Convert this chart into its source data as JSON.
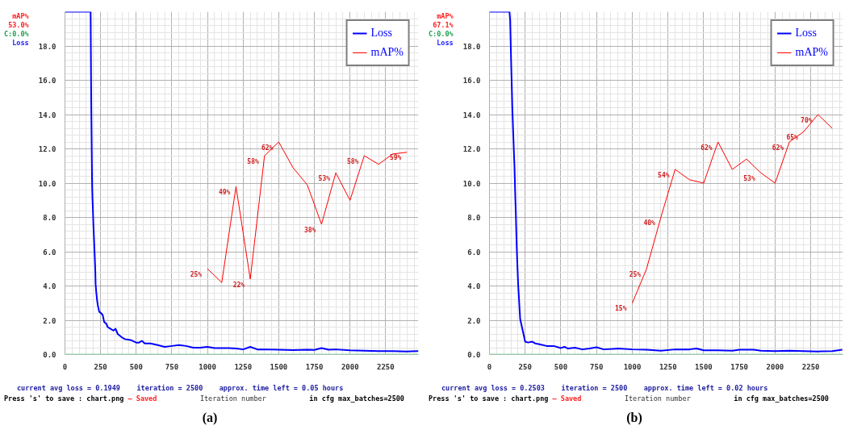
{
  "chart_data": [
    {
      "type": "line",
      "xlabel": "Iteration number",
      "xlim": [
        0,
        2480
      ],
      "xticks": [
        0,
        250,
        500,
        750,
        1000,
        1250,
        1500,
        1750,
        2000,
        2250
      ],
      "ylim": [
        0,
        20
      ],
      "yticks": [
        {
          "value": 0,
          "label": "0.0"
        },
        {
          "value": 2,
          "label": "2.0"
        },
        {
          "value": 4,
          "label": "4.0"
        },
        {
          "value": 6,
          "label": "6.0"
        },
        {
          "value": 8,
          "label": "8.0"
        },
        {
          "value": 10,
          "label": "10.0"
        },
        {
          "value": 12,
          "label": "12.0"
        },
        {
          "value": 14,
          "label": "14.0"
        },
        {
          "value": 16,
          "label": "16.0"
        },
        {
          "value": 18,
          "label": "18.0"
        }
      ],
      "y2lim": [
        0,
        100
      ],
      "grid": true,
      "legend": "top right",
      "ref_lines": [
        {
          "axis": "y",
          "value": 0,
          "color": "#90d8a8"
        }
      ],
      "annotations": [
        "mAP%",
        "53.0%",
        "C:0.0%",
        "Loss",
        "current avg loss = 0.1949    iteration = 2500    approx. time left = 0.05 hours",
        "Press 's' to save : chart.png",
        "– Saved",
        "in cfg max_batches=2500",
        "(a)"
      ],
      "series": [
        {
          "name": "Loss",
          "color": "#0000ff",
          "x": [
            0,
            180,
            181,
            182,
            183,
            184,
            185,
            186,
            187,
            188,
            189,
            190,
            191,
            193,
            195,
            197,
            199,
            201,
            203,
            205,
            207,
            209,
            211,
            213,
            215,
            220,
            225,
            230,
            240,
            255,
            265,
            275,
            290,
            300,
            320,
            340,
            355,
            370,
            400,
            420,
            460,
            500,
            520,
            540,
            560,
            600,
            650,
            700,
            750,
            800,
            850,
            900,
            950,
            1000,
            1050,
            1100,
            1150,
            1200,
            1250,
            1300,
            1350,
            1400,
            1500,
            1600,
            1700,
            1750,
            1800,
            1850,
            1900,
            2000,
            2100,
            2200,
            2300,
            2400,
            2480
          ],
          "values": [
            20,
            20,
            18.7,
            17.4,
            16.2,
            15.1,
            14.1,
            13.3,
            12.5,
            11.7,
            10.9,
            10.2,
            9.7,
            9.1,
            8.7,
            8.2,
            7.7,
            7.3,
            6.9,
            6.5,
            6.1,
            5.7,
            5.3,
            4.8,
            4.1,
            3.6,
            3.2,
            2.9,
            2.5,
            2.4,
            2.3,
            1.9,
            1.8,
            1.6,
            1.5,
            1.4,
            1.5,
            1.2,
            1.0,
            0.9,
            0.85,
            0.7,
            0.7,
            0.8,
            0.65,
            0.65,
            0.55,
            0.45,
            0.5,
            0.55,
            0.5,
            0.4,
            0.4,
            0.45,
            0.38,
            0.38,
            0.38,
            0.35,
            0.3,
            0.45,
            0.3,
            0.3,
            0.28,
            0.26,
            0.28,
            0.27,
            0.38,
            0.28,
            0.3,
            0.25,
            0.22,
            0.2,
            0.2,
            0.18,
            0.2
          ]
        },
        {
          "name": "mAP%",
          "color": "#ff0000",
          "axis": "y2",
          "x": [
            1000,
            1100,
            1200,
            1300,
            1400,
            1500,
            1600,
            1700,
            1800,
            1900,
            2000,
            2100,
            2200,
            2300,
            2400
          ],
          "values": [
            25,
            21,
            49,
            22,
            58,
            62,
            54.5,
            49.5,
            38,
            53,
            45,
            58,
            55.5,
            58.5,
            59
          ],
          "value_labels": [
            "25%",
            null,
            "49%",
            "22%",
            "58%",
            "62%",
            null,
            null,
            "38%",
            "53%",
            null,
            "58%",
            null,
            null,
            "59%"
          ]
        }
      ]
    },
    {
      "type": "line",
      "xlabel": "Iteration number",
      "xlim": [
        0,
        2475
      ],
      "xticks": [
        0,
        250,
        500,
        750,
        1000,
        1250,
        1500,
        1750,
        2000,
        2250
      ],
      "ylim": [
        0,
        20
      ],
      "yticks": [
        {
          "value": 0,
          "label": "0.0"
        },
        {
          "value": 2,
          "label": "2.0"
        },
        {
          "value": 4,
          "label": "4.0"
        },
        {
          "value": 6,
          "label": "6.0"
        },
        {
          "value": 8,
          "label": "8.0"
        },
        {
          "value": 10,
          "label": "10.0"
        },
        {
          "value": 12,
          "label": "12.0"
        },
        {
          "value": 14,
          "label": "14.0"
        },
        {
          "value": 16,
          "label": "16.0"
        },
        {
          "value": 18,
          "label": "18.0"
        }
      ],
      "y2lim": [
        0,
        100
      ],
      "grid": true,
      "legend": "top right",
      "ref_lines": [
        {
          "axis": "y",
          "value": 0,
          "color": "#90d8a8"
        }
      ],
      "annotations": [
        "mAP%",
        "67.1%",
        "C:0.0%",
        "Loss",
        "current avg loss = 0.2503    iteration = 2500    approx. time left = 0.02 hours",
        "Press 's' to save : chart.png",
        "– Saved",
        "in cfg max_batches=2500",
        "(b)"
      ],
      "series": [
        {
          "name": "Loss",
          "color": "#0000ff",
          "x": [
            0,
            140,
            145,
            148,
            151,
            154,
            157,
            160,
            163,
            166,
            169,
            172,
            175,
            177,
            179,
            181,
            183,
            185,
            187,
            189,
            191,
            193,
            195,
            197,
            199,
            201,
            203,
            205,
            208,
            212,
            215,
            250,
            270,
            300,
            320,
            350,
            400,
            450,
            500,
            525,
            550,
            600,
            650,
            700,
            750,
            800,
            900,
            1000,
            1100,
            1200,
            1300,
            1400,
            1450,
            1500,
            1600,
            1700,
            1750,
            1850,
            1900,
            2000,
            2100,
            2200,
            2300,
            2400,
            2470
          ],
          "values": [
            20,
            20,
            19.5,
            18.4,
            17.3,
            16.35,
            15.4,
            14.4,
            13.7,
            12.97,
            12.3,
            11.6,
            11.0,
            10.4,
            9.75,
            9.16,
            8.65,
            8.1,
            7.45,
            6.85,
            6.27,
            5.77,
            5.33,
            4.9,
            4.49,
            4.06,
            3.78,
            3.5,
            3.06,
            2.5,
            2.07,
            0.75,
            0.7,
            0.75,
            0.65,
            0.6,
            0.5,
            0.5,
            0.38,
            0.45,
            0.35,
            0.4,
            0.3,
            0.35,
            0.42,
            0.3,
            0.35,
            0.3,
            0.28,
            0.22,
            0.3,
            0.3,
            0.35,
            0.25,
            0.25,
            0.22,
            0.28,
            0.28,
            0.22,
            0.2,
            0.22,
            0.2,
            0.18,
            0.2,
            0.28
          ]
        },
        {
          "name": "mAP%",
          "color": "#ff0000",
          "axis": "y2",
          "x": [
            1000,
            1100,
            1200,
            1300,
            1400,
            1500,
            1600,
            1700,
            1800,
            1900,
            2000,
            2100,
            2200,
            2300,
            2400
          ],
          "values": [
            15,
            25,
            40,
            54,
            51,
            50,
            62,
            54,
            57,
            53,
            50,
            62,
            65,
            70,
            66
          ],
          "value_labels": [
            "15%",
            "25%",
            "40%",
            "54%",
            null,
            null,
            "62%",
            null,
            null,
            "53%",
            null,
            "62%",
            "65%",
            "70%",
            null
          ]
        }
      ]
    }
  ]
}
